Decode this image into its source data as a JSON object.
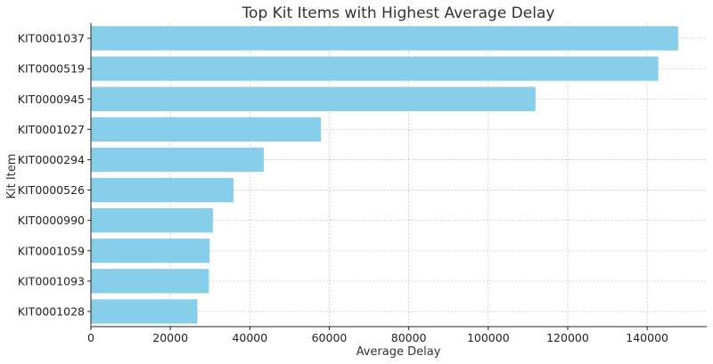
{
  "chart_data": {
    "type": "bar",
    "orientation": "horizontal",
    "title": "Top Kit Items with Highest Average Delay",
    "xlabel": "Average Delay",
    "ylabel": "Kit Item",
    "categories": [
      "KIT0001037",
      "KIT0000519",
      "KIT0000945",
      "KIT0001027",
      "KIT0000294",
      "KIT0000526",
      "KIT0000990",
      "KIT0001059",
      "KIT0001093",
      "KIT0001028"
    ],
    "values": [
      147800,
      142800,
      111900,
      57900,
      43500,
      35900,
      30700,
      29900,
      29700,
      26800
    ],
    "xlim": [
      0,
      155000
    ],
    "xticks": [
      0,
      20000,
      40000,
      60000,
      80000,
      100000,
      120000,
      140000
    ],
    "xtick_labels": [
      "0",
      "20000",
      "40000",
      "60000",
      "80000",
      "100000",
      "120000",
      "140000"
    ],
    "grid": true,
    "bar_color": "#87CEEB",
    "legend": false
  }
}
